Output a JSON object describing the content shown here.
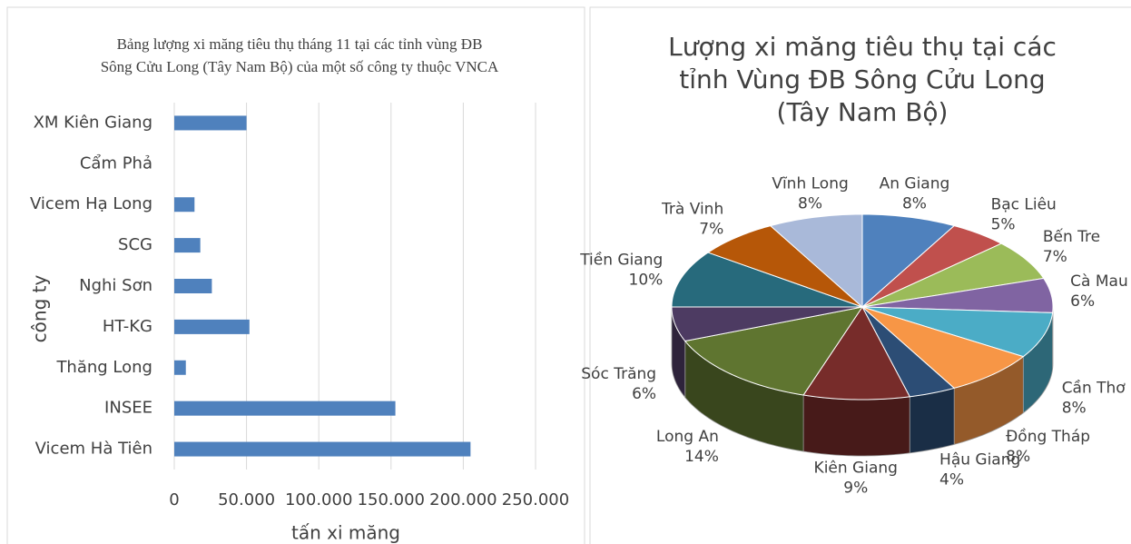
{
  "chart_data": [
    {
      "type": "bar",
      "orientation": "horizontal",
      "title": "Bảng lượng xi măng tiêu thụ tháng 11 tại các tỉnh vùng ĐB Sông Cửu Long (Tây Nam Bộ) của một số công ty thuộc VNCA",
      "categories": [
        "XM Kiên Giang",
        "Cẩm Phả",
        "Vicem Hạ Long",
        "SCG",
        "Nghi Sơn",
        "HT-KG",
        "Thăng Long",
        "INSEE",
        "Vicem Hà Tiên"
      ],
      "values": [
        50000,
        0,
        14000,
        18000,
        26000,
        52000,
        8000,
        153000,
        205000
      ],
      "color": "#4f81bd",
      "xlim": [
        0,
        250000
      ],
      "xticks": [
        0,
        {
          "value": 50000,
          "label": "50.000"
        },
        {
          "value": 100000,
          "label": "100.000"
        },
        {
          "value": 150000,
          "label": "150.000"
        },
        {
          "value": 200000,
          "label": "200.000"
        },
        {
          "value": 250000,
          "label": "250.000"
        }
      ],
      "grid": true,
      "x_label": "tấn xi măng",
      "y_label": "công ty"
    },
    {
      "type": "pie",
      "3d": true,
      "title": "Lượng xi măng tiêu thụ tại các tỉnh Vùng ĐB Sông Cửu Long (Tây Nam Bộ)",
      "categories": [
        "An Giang",
        "Bạc Liêu",
        "Bến Tre",
        "Cà Mau",
        "Cần Thơ",
        "Đồng Tháp",
        "Hậu Giang",
        "Kiên Giang",
        "Long An",
        "Sóc Trăng",
        "Tiền Giang",
        "Trà Vinh",
        "Vĩnh Long"
      ],
      "values": [
        8,
        5,
        7,
        6,
        8,
        8,
        4,
        9,
        14,
        6,
        10,
        7,
        8
      ],
      "value_labels": [
        "8%",
        "5%",
        "7%",
        "6%",
        "8%",
        "8%",
        "4%",
        "9%",
        "14%",
        "6%",
        "10%",
        "7%",
        "8%"
      ],
      "colors": [
        "#4f81bd",
        "#c0504d",
        "#9bbb59",
        "#8064a2",
        "#4bacc6",
        "#f79646",
        "#2c4d75",
        "#772c2a",
        "#5f7530",
        "#4d3b62",
        "#276a7c",
        "#b65708",
        "#a9b9d9"
      ]
    }
  ]
}
